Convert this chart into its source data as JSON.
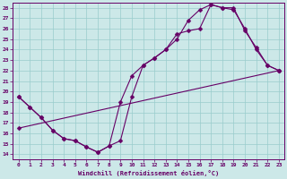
{
  "xlabel": "Windchill (Refroidissement éolien,°C)",
  "bg_color": "#cce8e8",
  "grid_color": "#99cccc",
  "line_color": "#660066",
  "markersize": 2.5,
  "linewidth": 0.8,
  "xlim": [
    -0.5,
    23.5
  ],
  "ylim": [
    13.5,
    28.5
  ],
  "xticks": [
    0,
    1,
    2,
    3,
    4,
    5,
    6,
    7,
    8,
    9,
    10,
    11,
    12,
    13,
    14,
    15,
    16,
    17,
    18,
    19,
    20,
    21,
    22,
    23
  ],
  "yticks": [
    14,
    15,
    16,
    17,
    18,
    19,
    20,
    21,
    22,
    23,
    24,
    25,
    26,
    27,
    28
  ],
  "series": [
    {
      "x": [
        0,
        1,
        2,
        3,
        4,
        5,
        6,
        7,
        8,
        9,
        10,
        11,
        12,
        13,
        14,
        15,
        16,
        17,
        18,
        19,
        20,
        21,
        22,
        23
      ],
      "y": [
        19.5,
        18.5,
        17.5,
        16.3,
        15.5,
        15.3,
        14.7,
        14.2,
        14.8,
        15.3,
        19.5,
        22.5,
        23.2,
        24.0,
        25.0,
        26.8,
        27.8,
        28.3,
        28.0,
        27.8,
        26.0,
        24.0,
        22.5,
        22.0
      ]
    },
    {
      "x": [
        0,
        1,
        2,
        3,
        4,
        5,
        6,
        7,
        8,
        9,
        10,
        11,
        12,
        13,
        14,
        15,
        16,
        17,
        18,
        19,
        20,
        21,
        22,
        23
      ],
      "y": [
        19.5,
        18.5,
        17.5,
        16.3,
        15.5,
        15.3,
        14.7,
        14.2,
        14.8,
        19.0,
        21.5,
        22.5,
        23.2,
        24.0,
        25.5,
        25.8,
        26.0,
        28.3,
        28.0,
        28.0,
        25.8,
        24.2,
        22.5,
        22.0
      ]
    },
    {
      "x": [
        0,
        23
      ],
      "y": [
        16.5,
        22.0
      ]
    }
  ]
}
